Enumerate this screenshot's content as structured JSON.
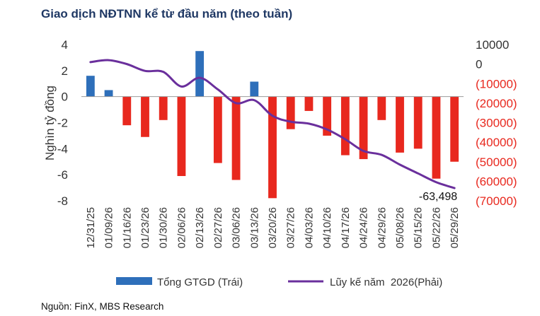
{
  "title": "Giao dịch NĐTNN kể từ đầu năm (theo tuần)",
  "source": "Nguồn: FinX, MBS Research",
  "colors": {
    "bar_pos": "#2e6fba",
    "bar_neg": "#e8281e",
    "line": "#6a2f9c",
    "axis_neg_text": "#e8281e",
    "axis_text": "#333333"
  },
  "chart_data": {
    "type": "bar",
    "categories": [
      "12/31/25",
      "01/09/26",
      "01/16/26",
      "01/23/26",
      "01/30/26",
      "02/06/26",
      "02/13/26",
      "02/27/26",
      "03/06/26",
      "03/13/26",
      "03/20/26",
      "03/27/26",
      "04/03/26",
      "04/10/26",
      "04/17/26",
      "04/24/26",
      "04/29/26",
      "05/08/26",
      "05/15/26",
      "05/22/26",
      "05/29/26"
    ],
    "series": [
      {
        "name": "Tổng GTGD (Trái)",
        "type": "bar",
        "axis": "left",
        "values": [
          1.6,
          0.5,
          -2.2,
          -3.1,
          -1.8,
          -6.1,
          3.5,
          -5.1,
          -6.4,
          1.15,
          -7.8,
          -2.5,
          -1.1,
          -3.0,
          -4.5,
          -4.8,
          -1.8,
          -4.3,
          -4.0,
          -6.3,
          -5.0
        ]
      },
      {
        "name": "Lũy kế năm  2026(Phải)",
        "type": "line",
        "axis": "right",
        "values": [
          1000,
          2000,
          0,
          -3500,
          -4000,
          -11500,
          -7000,
          -13000,
          -20000,
          -18500,
          -26500,
          -29500,
          -30500,
          -33500,
          -38500,
          -44500,
          -46500,
          -51500,
          -56000,
          -60500,
          -63498
        ]
      }
    ],
    "ylabel": "Nghìn tỷ đồng",
    "ylim": [
      -8,
      4
    ],
    "yticks": [
      "4",
      "2",
      "0",
      "-2",
      "-4",
      "-6",
      "-8"
    ],
    "y2lim": [
      -70000,
      10000
    ],
    "y2ticks": [
      "10000",
      "0",
      "(10000)",
      "(20000)",
      "(30000)",
      "(40000)",
      "(50000)",
      "(60000)",
      "(70000)"
    ],
    "annotation": "-63,498",
    "legend_position": "bottom"
  }
}
